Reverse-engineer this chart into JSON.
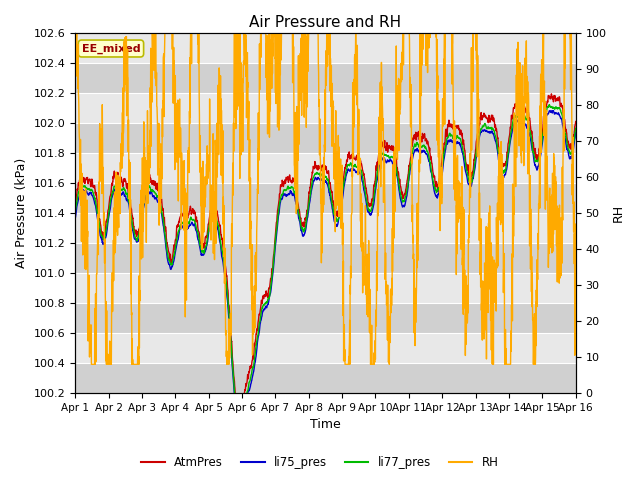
{
  "title": "Air Pressure and RH",
  "xlabel": "Time",
  "ylabel_left": "Air Pressure (kPa)",
  "ylabel_right": "RH",
  "annotation_text": "EE_mixed",
  "annotation_bg": "#ffffcc",
  "annotation_border": "#bbbb00",
  "annotation_text_color": "#990000",
  "ylim_left": [
    100.2,
    102.6
  ],
  "ylim_right": [
    0,
    100
  ],
  "yticks_left": [
    100.2,
    100.4,
    100.6,
    100.8,
    101.0,
    101.2,
    101.4,
    101.6,
    101.8,
    102.0,
    102.2,
    102.4,
    102.6
  ],
  "yticks_right": [
    0,
    10,
    20,
    30,
    40,
    50,
    60,
    70,
    80,
    90,
    100
  ],
  "x_tick_labels": [
    "Apr 1",
    "Apr 2",
    "Apr 3",
    "Apr 4",
    "Apr 5",
    "Apr 6",
    "Apr 7",
    "Apr 8",
    "Apr 9",
    "Apr 10",
    "Apr 11",
    "Apr 12",
    "Apr 13",
    "Apr 14",
    "Apr 15",
    "Apr 16"
  ],
  "legend_labels": [
    "AtmPres",
    "li75_pres",
    "li77_pres",
    "RH"
  ],
  "legend_colors": [
    "#cc0000",
    "#0000cc",
    "#00bb00",
    "#ffaa00"
  ],
  "fig_bg_color": "#ffffff",
  "plot_bg_light": "#e8e8e8",
  "plot_bg_dark": "#d0d0d0",
  "grid_color": "#ffffff",
  "line_width": 1.0
}
